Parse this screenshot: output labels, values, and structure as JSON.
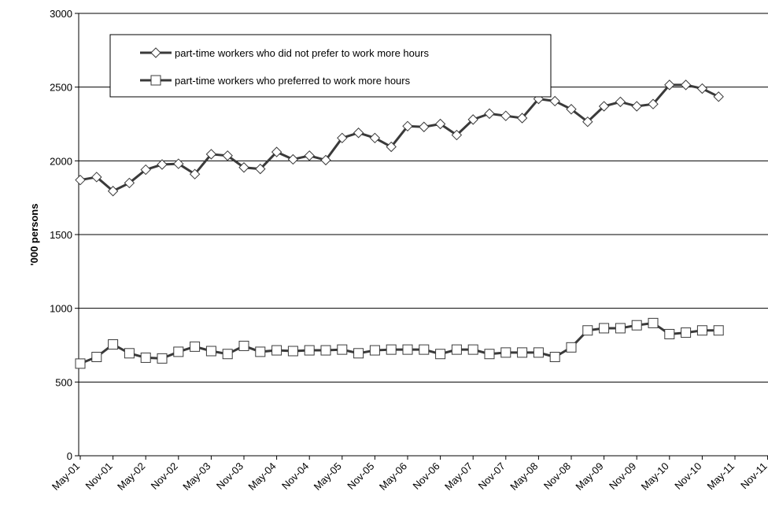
{
  "chart_data": {
    "type": "line",
    "y_label": "'000 persons",
    "categories": [
      "May-01",
      null,
      "Nov-01",
      null,
      "May-02",
      null,
      "Nov-02",
      null,
      "May-03",
      null,
      "Nov-03",
      null,
      "May-04",
      null,
      "Nov-04",
      null,
      "May-05",
      null,
      "Nov-05",
      null,
      "May-06",
      null,
      "Nov-06",
      null,
      "May-07",
      null,
      "Nov-07",
      null,
      "May-08",
      null,
      "Nov-08",
      null,
      "May-09",
      null,
      "Nov-09",
      null,
      "May-10",
      null,
      "Nov-10",
      null,
      "May-11",
      null,
      "Nov-11"
    ],
    "series": [
      {
        "name": "part-time workers who did not prefer to work more hours",
        "color": "#3a3a3a",
        "marker": "diamond",
        "values": [
          1870,
          1890,
          1795,
          1850,
          1940,
          1975,
          1980,
          1910,
          2045,
          2035,
          1955,
          1945,
          2060,
          2010,
          2035,
          2005,
          2155,
          2190,
          2155,
          2095,
          2235,
          2230,
          2250,
          2175,
          2280,
          2320,
          2305,
          2290,
          2420,
          2405,
          2350,
          2265,
          2370,
          2400,
          2370,
          2385,
          2515,
          2515,
          2490,
          2435,
          null,
          null,
          null
        ]
      },
      {
        "name": "part-time workers who preferred to work more hours",
        "color": "#3a3a3a",
        "marker": "square",
        "values": [
          625,
          670,
          755,
          695,
          665,
          660,
          705,
          740,
          710,
          690,
          745,
          705,
          715,
          710,
          715,
          715,
          720,
          695,
          715,
          720,
          720,
          720,
          690,
          720,
          720,
          690,
          700,
          700,
          700,
          670,
          735,
          850,
          865,
          865,
          885,
          900,
          825,
          835,
          850,
          850,
          null,
          null,
          null
        ]
      }
    ],
    "ylim": [
      0,
      3000
    ],
    "yticks": [
      0,
      500,
      1000,
      1500,
      2000,
      2500,
      3000
    ],
    "grid": true
  }
}
